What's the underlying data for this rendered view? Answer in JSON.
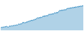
{
  "chart_data": {
    "type": "area",
    "color": "#3a8fc4",
    "xlim": [
      0,
      99
    ],
    "ylim": [
      0,
      1.0
    ],
    "tick_labels": false,
    "values": [
      0.08,
      0.11,
      0.09,
      0.12,
      0.1,
      0.13,
      0.11,
      0.14,
      0.12,
      0.1,
      0.13,
      0.15,
      0.13,
      0.16,
      0.14,
      0.17,
      0.15,
      0.18,
      0.16,
      0.19,
      0.17,
      0.2,
      0.22,
      0.19,
      0.23,
      0.21,
      0.25,
      0.28,
      0.24,
      0.27,
      0.25,
      0.29,
      0.27,
      0.31,
      0.29,
      0.33,
      0.31,
      0.35,
      0.32,
      0.36,
      0.34,
      0.38,
      0.36,
      0.4,
      0.43,
      0.4,
      0.44,
      0.41,
      0.45,
      0.42,
      0.46,
      0.49,
      0.46,
      0.5,
      0.47,
      0.51,
      0.48,
      0.52,
      0.55,
      0.52,
      0.56,
      0.53,
      0.57,
      0.54,
      0.58,
      0.6,
      0.57,
      0.61,
      0.58,
      0.62,
      0.65,
      0.68,
      0.65,
      0.69,
      0.66,
      0.7,
      0.67,
      0.71,
      0.68,
      0.72,
      0.75,
      0.72,
      0.76,
      0.73,
      0.77,
      0.74,
      0.78,
      0.75,
      0.79,
      0.76,
      0.8,
      0.77,
      0.81,
      0.78,
      0.82,
      0.79,
      0.83,
      0.8,
      0.84,
      0.81
    ]
  }
}
